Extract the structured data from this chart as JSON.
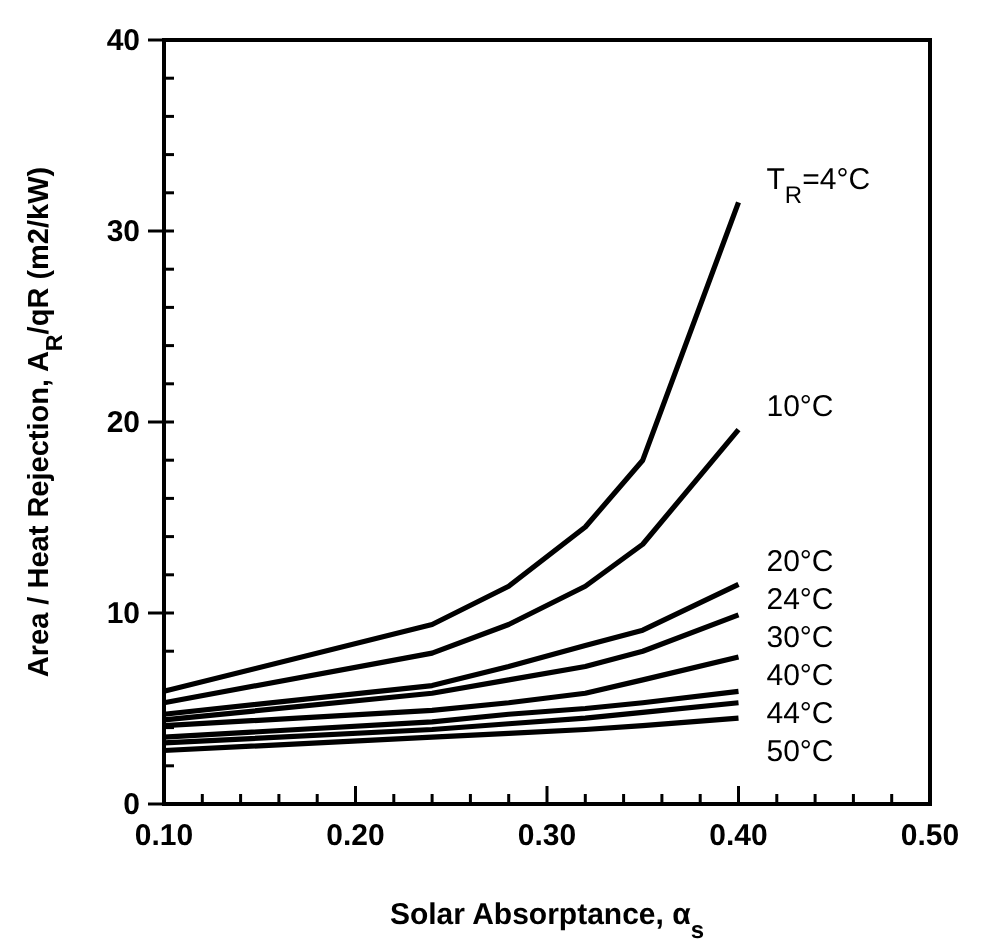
{
  "chart_data": {
    "type": "line",
    "xlabel": "Solar  Absorptance, α$_{s}$",
    "ylabel": "Area / Heat Rejection, A$_{R}$/qR (m2/kW)",
    "xlim": [
      0.1,
      0.5
    ],
    "ylim": [
      0,
      40
    ],
    "xticks": [
      {
        "value": 0.1,
        "label": "0.10"
      },
      {
        "value": 0.12,
        "label": null
      },
      {
        "value": 0.14,
        "label": null
      },
      {
        "value": 0.16,
        "label": null
      },
      {
        "value": 0.18,
        "label": null
      },
      {
        "value": 0.2,
        "label": "0.20"
      },
      {
        "value": 0.22,
        "label": null
      },
      {
        "value": 0.24,
        "label": null
      },
      {
        "value": 0.26,
        "label": null
      },
      {
        "value": 0.28,
        "label": null
      },
      {
        "value": 0.3,
        "label": "0.30"
      },
      {
        "value": 0.32,
        "label": null
      },
      {
        "value": 0.34,
        "label": null
      },
      {
        "value": 0.36,
        "label": null
      },
      {
        "value": 0.38,
        "label": null
      },
      {
        "value": 0.4,
        "label": "0.40"
      },
      {
        "value": 0.42,
        "label": null
      },
      {
        "value": 0.44,
        "label": null
      },
      {
        "value": 0.46,
        "label": null
      },
      {
        "value": 0.48,
        "label": null
      },
      {
        "value": 0.5,
        "label": "0.50"
      }
    ],
    "yticks": [
      0,
      {
        "value": 2,
        "label": null
      },
      {
        "value": 4,
        "label": null
      },
      {
        "value": 6,
        "label": null
      },
      {
        "value": 8,
        "label": null
      },
      10,
      {
        "value": 12,
        "label": null
      },
      {
        "value": 14,
        "label": null
      },
      {
        "value": 16,
        "label": null
      },
      {
        "value": 18,
        "label": null
      },
      20,
      {
        "value": 22,
        "label": null
      },
      {
        "value": 24,
        "label": null
      },
      {
        "value": 26,
        "label": null
      },
      {
        "value": 28,
        "label": null
      },
      30,
      {
        "value": 32,
        "label": null
      },
      {
        "value": 34,
        "label": null
      },
      {
        "value": 36,
        "label": null
      },
      {
        "value": 38,
        "label": null
      },
      40
    ],
    "x": [
      0.1,
      0.24,
      0.28,
      0.32,
      0.35,
      0.4
    ],
    "series": [
      {
        "name": "T$_{R}$=4°C",
        "color": "#000000",
        "values": [
          5.9,
          9.4,
          11.4,
          14.5,
          18,
          31.5
        ]
      },
      {
        "name": "10°C",
        "color": "#000000",
        "values": [
          5.3,
          7.9,
          9.4,
          11.4,
          13.6,
          19.6
        ]
      },
      {
        "name": "20°C",
        "color": "#000000",
        "values": [
          4.7,
          6.2,
          7.2,
          8.3,
          9.1,
          11.5
        ]
      },
      {
        "name": "24°C",
        "color": "#000000",
        "values": [
          4.4,
          5.8,
          6.5,
          7.2,
          8,
          9.9
        ]
      },
      {
        "name": "30°C",
        "color": "#000000",
        "values": [
          4.1,
          4.9,
          5.3,
          5.8,
          6.5,
          7.7
        ]
      },
      {
        "name": "40°C",
        "color": "#000000",
        "values": [
          3.5,
          4.3,
          4.7,
          5,
          5.3,
          5.9
        ]
      },
      {
        "name": "44°C",
        "color": "#000000",
        "values": [
          3.2,
          3.9,
          4.2,
          4.5,
          4.8,
          5.3
        ]
      },
      {
        "name": "50°C",
        "color": "#000000",
        "values": [
          2.8,
          3.5,
          3.7,
          3.9,
          4.1,
          4.5
        ]
      }
    ],
    "line_style": "solid",
    "marker": "none",
    "grid": false
  }
}
